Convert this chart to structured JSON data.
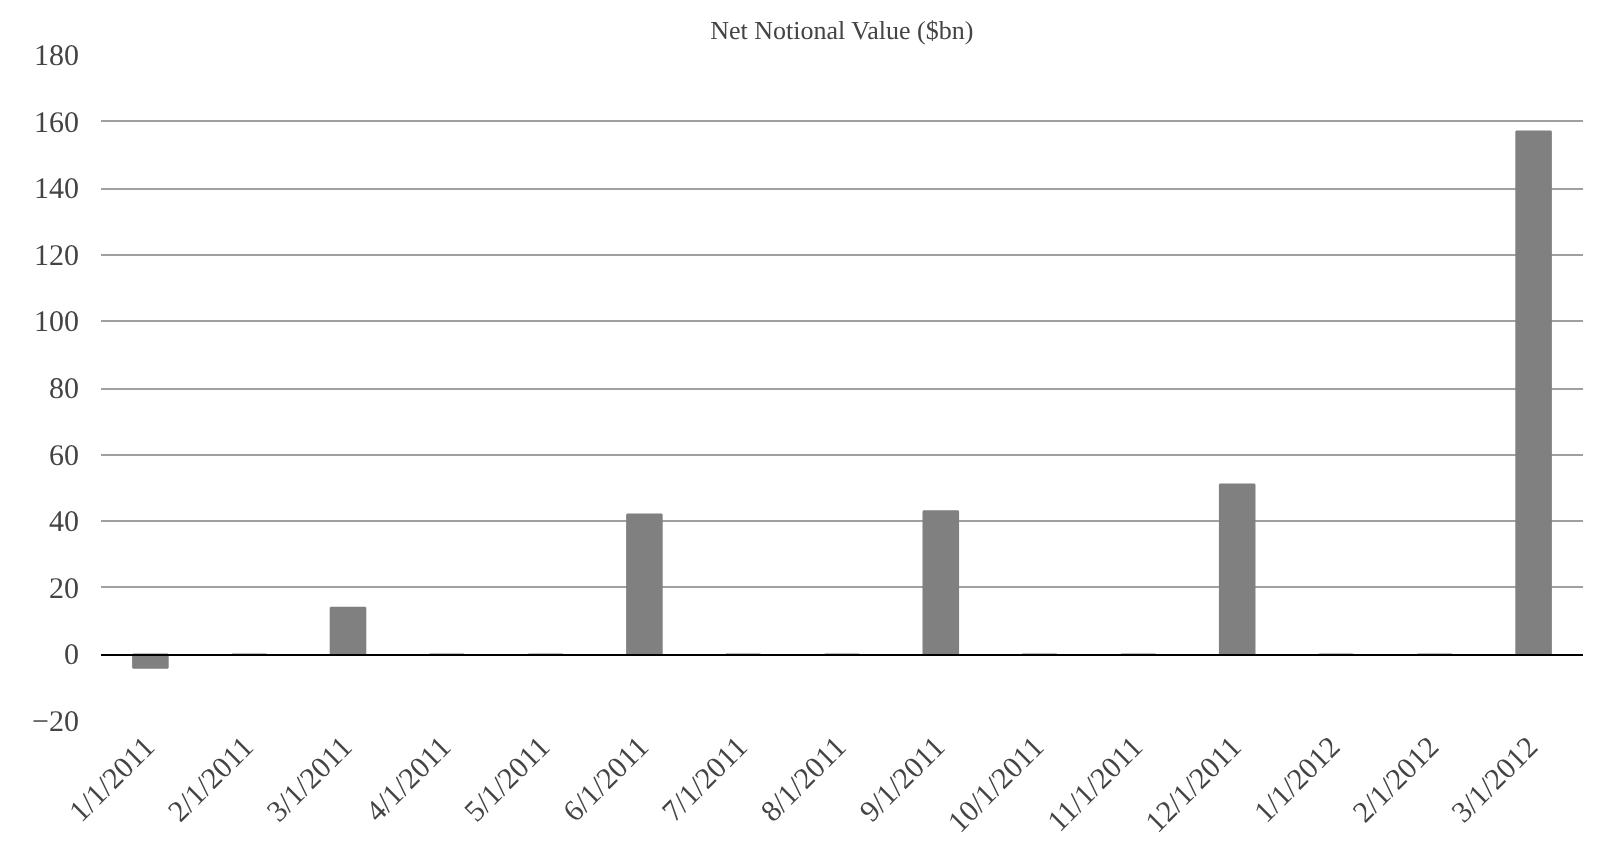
{
  "chart_data": {
    "type": "bar",
    "title": "Net Notional Value ($bn)",
    "categories": [
      "1/1/2011",
      "2/1/2011",
      "3/1/2011",
      "4/1/2011",
      "5/1/2011",
      "6/1/2011",
      "7/1/2011",
      "8/1/2011",
      "9/1/2011",
      "10/1/2011",
      "11/1/2011",
      "12/1/2011",
      "1/1/2012",
      "2/1/2012",
      "3/1/2012"
    ],
    "values": [
      -4,
      0,
      14,
      0,
      0,
      42,
      0,
      0,
      43,
      0,
      0,
      51,
      0,
      0,
      157
    ],
    "color": "#808080",
    "ylim": [
      -20,
      180
    ],
    "yticks": [
      -20,
      0,
      20,
      40,
      60,
      80,
      100,
      120,
      140,
      160,
      180
    ],
    "grid": "y"
  }
}
